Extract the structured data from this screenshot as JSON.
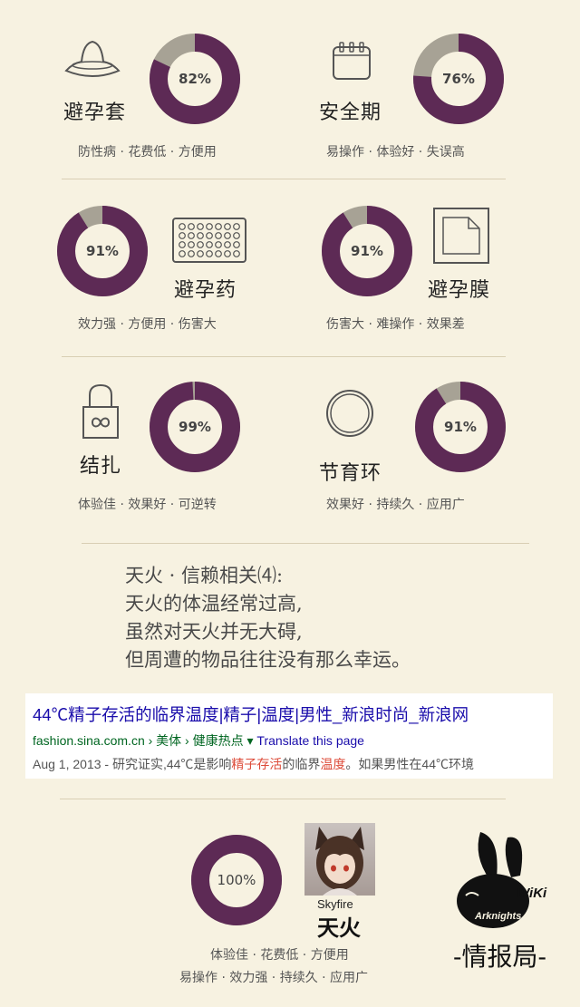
{
  "colors": {
    "background": "#f7f2e1",
    "ring_fill": "#5d2a55",
    "ring_rest": "#a7a295",
    "divider": "#d9cfb4",
    "link": "#1a0dab",
    "url": "#006621",
    "highlight": "#dd4b39"
  },
  "methods": [
    {
      "name": "避孕套",
      "percent": 82,
      "percent_label": "82%",
      "desc": "防性病 · 花费低 · 方便用",
      "icon": "condom-icon"
    },
    {
      "name": "安全期",
      "percent": 76,
      "percent_label": "76%",
      "desc": "易操作 · 体验好 · 失误高",
      "icon": "calendar-icon"
    },
    {
      "name": "避孕药",
      "percent": 91,
      "percent_label": "91%",
      "desc": "效力强 · 方便用 · 伤害大",
      "icon": "pill-pack-icon"
    },
    {
      "name": "避孕膜",
      "percent": 91,
      "percent_label": "91%",
      "desc": "伤害大 · 难操作 · 效果差",
      "icon": "film-icon"
    },
    {
      "name": "结扎",
      "percent": 99,
      "percent_label": "99%",
      "desc": "体验佳 · 效果好 · 可逆转",
      "icon": "lock-infinity-icon"
    },
    {
      "name": "节育环",
      "percent": 91,
      "percent_label": "91%",
      "desc": "效果好 · 持续久 · 应用广",
      "icon": "ring-icon"
    }
  ],
  "quote": {
    "lines": [
      "天火 · 信赖相关⑷:",
      "天火的体温经常过高,",
      "虽然对天火并无大碍,",
      "但周遭的物品往往没有那么幸运。"
    ]
  },
  "search_result": {
    "title": "44℃精子存活的临界温度|精子|温度|男性_新浪时尚_新浪网",
    "url": "fashion.sina.com.cn › 美体 › 健康热点 ▾",
    "translate": "Translate this page",
    "snippet_a": "Aug 1, 2013 - 研究证实,44℃是影响",
    "snippet_hl1": "精子存活",
    "snippet_b": "的临界",
    "snippet_hl2": "温度",
    "snippet_c": "。如果男性在44℃环境"
  },
  "character": {
    "percent": 100,
    "percent_label": "100%",
    "name_en": "Skyfire",
    "name_cn": "天火",
    "desc_line1": "体验佳 · 花费低 · 方便用",
    "desc_line2": "易操作 · 效力强 · 持续久 · 应用广"
  },
  "logo": {
    "wiki": "WiKi",
    "brand": "Arknights",
    "subtitle": "-情报局-"
  }
}
